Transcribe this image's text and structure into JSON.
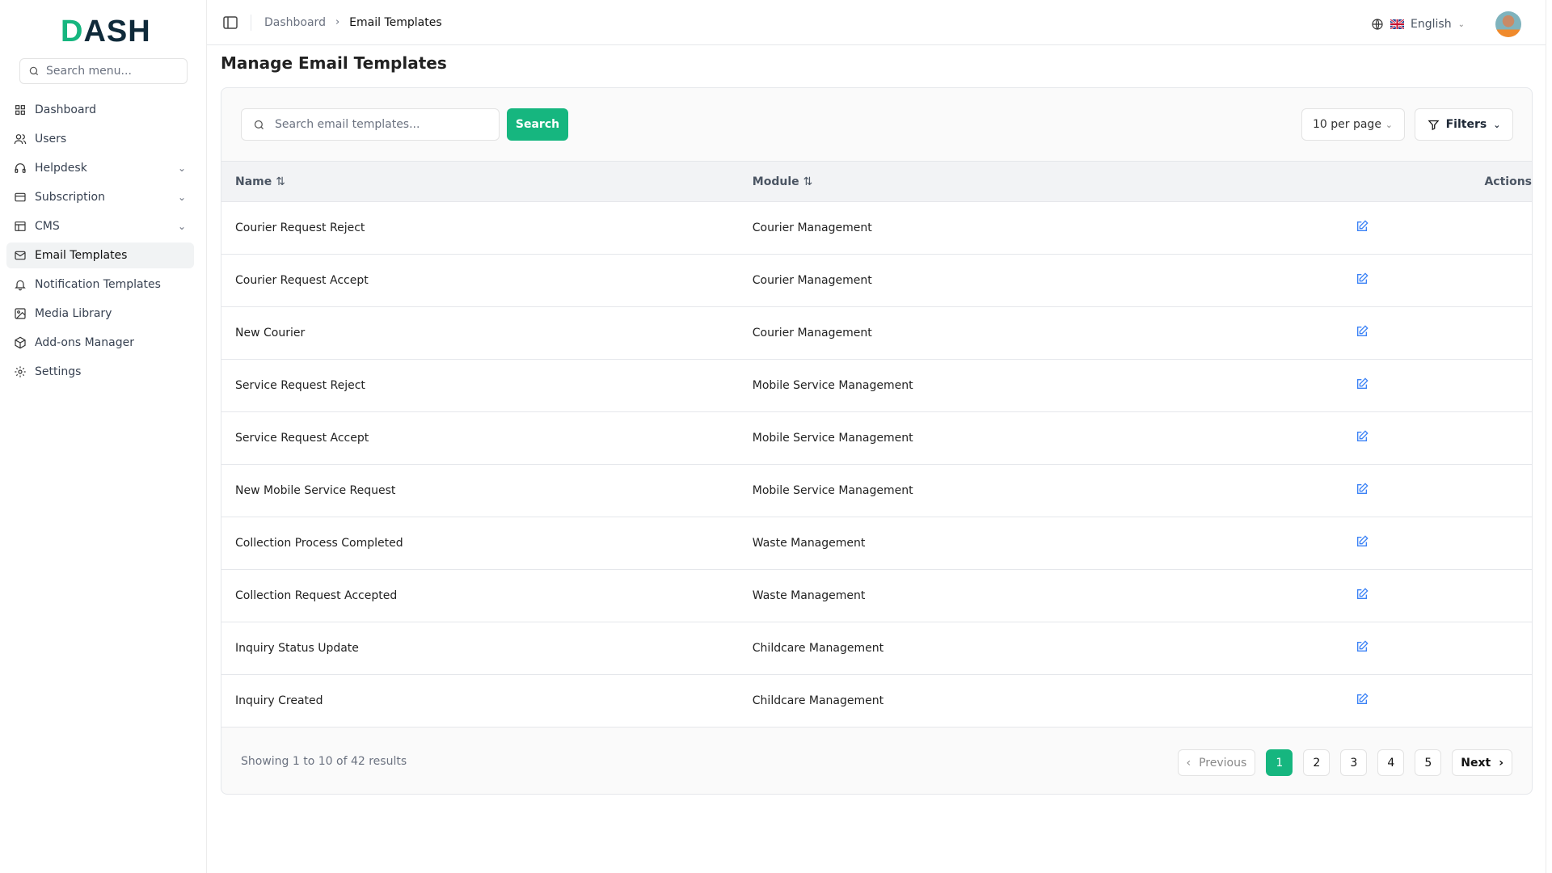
{
  "app": {
    "logo": "DASH",
    "logo_accent": "D",
    "logo_rest": "ASH",
    "accent_color": "#16b67f"
  },
  "sidebar": {
    "search_placeholder": "Search menu...",
    "items": [
      {
        "label": "Dashboard",
        "icon": "grid-icon"
      },
      {
        "label": "Users",
        "icon": "users-icon"
      },
      {
        "label": "Helpdesk",
        "icon": "headphones-icon",
        "expandable": true
      },
      {
        "label": "Subscription",
        "icon": "credit-card-icon",
        "expandable": true
      },
      {
        "label": "CMS",
        "icon": "layout-icon",
        "expandable": true
      },
      {
        "label": "Email Templates",
        "icon": "mail-icon",
        "active": true
      },
      {
        "label": "Notification Templates",
        "icon": "bell-icon"
      },
      {
        "label": "Media Library",
        "icon": "image-icon"
      },
      {
        "label": "Add-ons Manager",
        "icon": "package-icon"
      },
      {
        "label": "Settings",
        "icon": "gear-icon"
      }
    ]
  },
  "header": {
    "breadcrumb": [
      "Dashboard",
      "Email Templates"
    ],
    "language": "English"
  },
  "main": {
    "title": "Manage Email Templates",
    "search_placeholder": "Search email templates...",
    "search_button": "Search",
    "per_page": "10 per page",
    "filters_label": "Filters",
    "columns": [
      "Name",
      "Module",
      "Actions"
    ],
    "rows": [
      {
        "name": "Courier Request Reject",
        "module": "Courier Management"
      },
      {
        "name": "Courier Request Accept",
        "module": "Courier Management"
      },
      {
        "name": "New Courier",
        "module": "Courier Management"
      },
      {
        "name": "Service Request Reject",
        "module": "Mobile Service Management"
      },
      {
        "name": "Service Request Accept",
        "module": "Mobile Service Management"
      },
      {
        "name": "New Mobile Service Request",
        "module": "Mobile Service Management"
      },
      {
        "name": "Collection Process Completed",
        "module": "Waste Management"
      },
      {
        "name": "Collection Request Accepted",
        "module": "Waste Management"
      },
      {
        "name": "Inquiry Status Update",
        "module": "Childcare Management"
      },
      {
        "name": "Inquiry Created",
        "module": "Childcare Management"
      }
    ],
    "summary": "Showing 1 to 10 of 42 results",
    "pagination": {
      "previous": "Previous",
      "next": "Next",
      "pages": [
        "1",
        "2",
        "3",
        "4",
        "5"
      ],
      "current": "1"
    }
  }
}
